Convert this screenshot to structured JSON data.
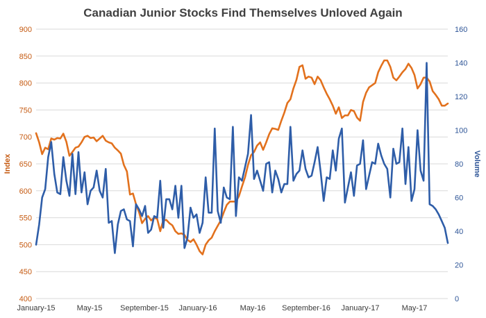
{
  "chart_data": {
    "type": "line",
    "title": "Canadian Junior Stocks Find Themselves Unloved Again",
    "ylabel_left": "Index",
    "ylabel_right": "Volume",
    "ylim_left": [
      400,
      900
    ],
    "ylim_right": [
      0,
      160
    ],
    "yticks_left": [
      "400",
      "450",
      "500",
      "550",
      "600",
      "650",
      "700",
      "750",
      "800",
      "850",
      "900"
    ],
    "yticks_right": [
      "0",
      "20",
      "40",
      "60",
      "80",
      "100",
      "120",
      "140",
      "160"
    ],
    "xticks": [
      "January-15",
      "May-15",
      "September-15",
      "January-16",
      "May-16",
      "September-16",
      "January-17",
      "May-17"
    ],
    "grid": true,
    "series": [
      {
        "axis": "left",
        "color": "#e2711d",
        "values": [
          707,
          690,
          668,
          680,
          677,
          697,
          695,
          698,
          697,
          706,
          691,
          665,
          672,
          680,
          682,
          690,
          700,
          702,
          698,
          699,
          692,
          697,
          702,
          693,
          690,
          688,
          680,
          675,
          669,
          648,
          636,
          593,
          595,
          575,
          560,
          540,
          548,
          553,
          545,
          550,
          548,
          525,
          545,
          546,
          540,
          536,
          525,
          520,
          521,
          518,
          509,
          505,
          510,
          500,
          488,
          482,
          500,
          508,
          513,
          525,
          535,
          545,
          560,
          574,
          580,
          580,
          580,
          590,
          608,
          625,
          648,
          666,
          672,
          684,
          690,
          676,
          690,
          705,
          716,
          715,
          713,
          730,
          745,
          763,
          770,
          790,
          806,
          830,
          833,
          808,
          812,
          810,
          798,
          812,
          805,
          792,
          780,
          770,
          758,
          743,
          755,
          735,
          740,
          740,
          750,
          748,
          736,
          730,
          765,
          782,
          792,
          796,
          800,
          820,
          832,
          842,
          842,
          830,
          810,
          805,
          812,
          820,
          826,
          836,
          828,
          815,
          790,
          798,
          810,
          810,
          803,
          785,
          778,
          770,
          758,
          758,
          762
        ]
      },
      {
        "axis": "right",
        "color": "#2e5da8",
        "values": [
          32,
          44,
          60,
          65,
          84,
          93,
          74,
          63,
          62,
          84,
          70,
          61,
          86,
          62,
          87,
          63,
          75,
          56,
          64,
          66,
          76,
          64,
          60,
          77,
          45,
          46,
          27,
          44,
          52,
          53,
          47,
          46,
          31,
          56,
          53,
          49,
          55,
          39,
          41,
          49,
          48,
          70,
          42,
          59,
          59,
          53,
          67,
          48,
          67,
          30,
          36,
          54,
          48,
          50,
          39,
          45,
          72,
          51,
          51,
          101,
          52,
          45,
          66,
          60,
          59,
          102,
          49,
          72,
          70,
          78,
          86,
          109,
          71,
          76,
          70,
          64,
          80,
          81,
          63,
          76,
          71,
          63,
          68,
          68,
          102,
          70,
          74,
          76,
          88,
          77,
          72,
          73,
          81,
          90,
          75,
          58,
          72,
          71,
          88,
          76,
          95,
          101,
          57,
          66,
          75,
          61,
          79,
          80,
          94,
          65,
          73,
          81,
          80,
          92,
          85,
          80,
          77,
          60,
          89,
          80,
          81,
          101,
          68,
          90,
          58,
          65,
          100,
          76,
          70,
          140,
          56,
          55,
          53,
          50,
          46,
          42,
          33
        ]
      }
    ]
  }
}
